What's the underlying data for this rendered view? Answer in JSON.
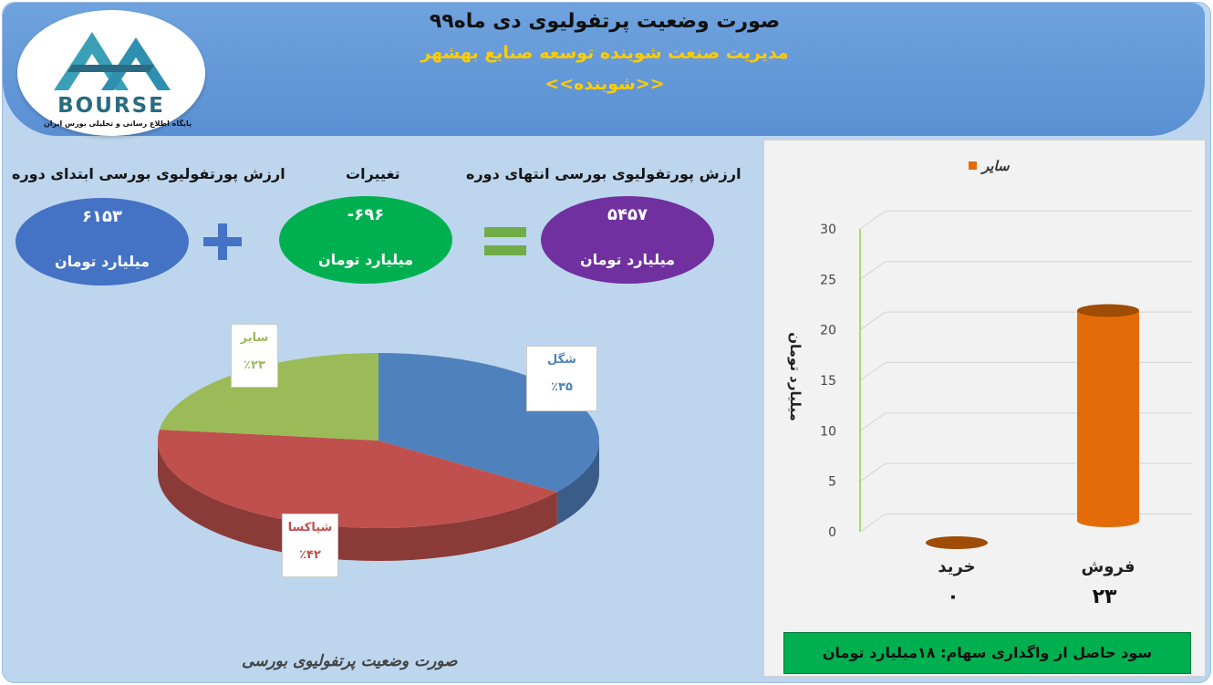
{
  "header": {
    "title": "صورت وضعیت پرتفولیوی دی ماه۹۹",
    "subtitle": "مدیریت صنعت شوینده توسعه صنایع بهشهر",
    "nickname": "<<شوینده>>"
  },
  "logo": {
    "text": "BOURSE",
    "subtitle": "پایگاه اطلاع رسانی و تحلیلی بورس ایران"
  },
  "summary": {
    "start": {
      "label": "ارزش پورتفولیوی بورسی ابتدای دوره",
      "value": "۶۱۵۳",
      "unit": "میلیارد تومان",
      "color": "#4472c4"
    },
    "change": {
      "label": "تغییرات",
      "value": "-۶۹۶",
      "unit": "میلیارد تومان",
      "color": "#00b050"
    },
    "end": {
      "label": "ارزش پورتفولیوی بورسی انتهای دوره",
      "value": "۵۴۵۷",
      "unit": "میلیارد تومان",
      "color": "#7030a0"
    },
    "plus_color": "#4472c4",
    "equals_color": "#70ad47"
  },
  "pie_caption": "صورت وضعیت پرتفولیوی بورسی",
  "profit_note": "سود حاصل از واگذاری سهام: ۱۸میلیارد تومان",
  "chart_data": [
    {
      "type": "pie",
      "slices": [
        {
          "label": "شگل",
          "value": 35,
          "display": "٪۳۵",
          "color": "#4f81bd"
        },
        {
          "label": "شپاکسا",
          "value": 42,
          "display": "٪۴۲",
          "color": "#c0504d"
        },
        {
          "label": "سایر",
          "value": 23,
          "display": "٪۲۳",
          "color": "#9bbb59"
        }
      ]
    },
    {
      "type": "bar",
      "categories": [
        "فروش",
        "خرید"
      ],
      "series": [
        {
          "name": "سایر",
          "values": [
            23,
            0
          ],
          "color": "#e36c09"
        }
      ],
      "data_labels": [
        "۲۳",
        "۰"
      ],
      "ylabel": "میلیارد تومان",
      "ylim": [
        0,
        30
      ],
      "yticks": [
        0,
        5,
        10,
        15,
        20,
        25,
        30
      ],
      "legend_position": "top"
    }
  ]
}
